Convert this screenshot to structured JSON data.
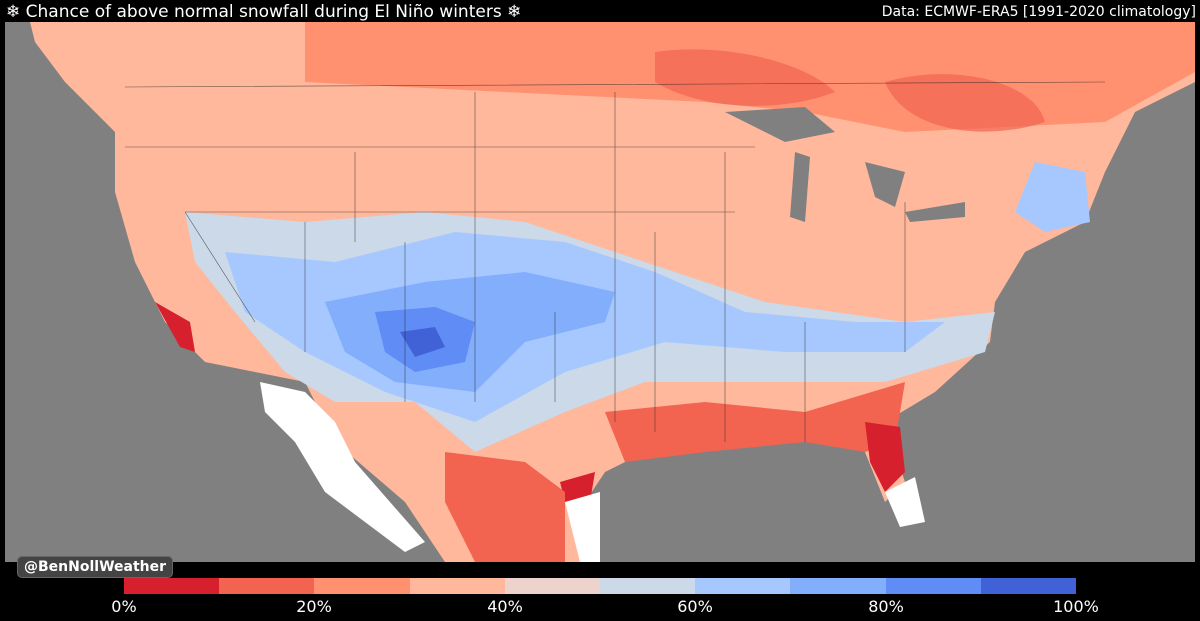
{
  "header": {
    "title": "❄ Chance of above normal snowfall during El Niño winters ❄",
    "source": "Data: ECMWF-ERA5 [1991-2020 climatology]"
  },
  "map": {
    "credit": "@BenNollWeather",
    "ocean_color": "#808080",
    "no_data_color": "#ffffff"
  },
  "legend": {
    "colors": [
      "#d7202e",
      "#f26450",
      "#ff9170",
      "#ffb89c",
      "#ecd4cc",
      "#cbd9e8",
      "#a6c8ff",
      "#82aefc",
      "#608cf5",
      "#4062d6"
    ],
    "ticks": [
      "0%",
      "20%",
      "40%",
      "60%",
      "80%",
      "100%"
    ]
  }
}
